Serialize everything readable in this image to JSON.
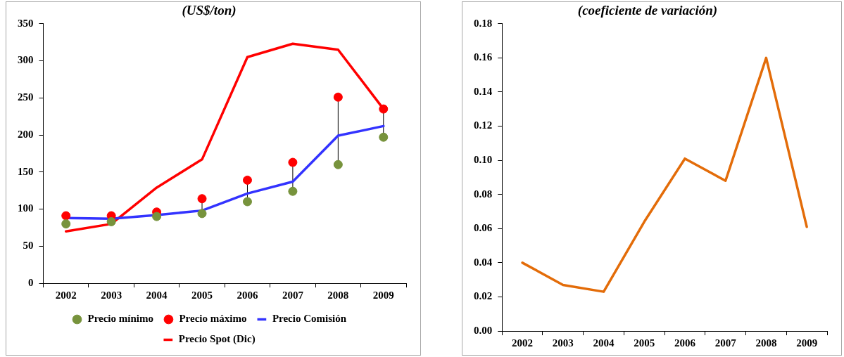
{
  "chart_data": [
    {
      "type": "line",
      "title": "(US$/ton)",
      "categories": [
        "2002",
        "2003",
        "2004",
        "2005",
        "2006",
        "2007",
        "2008",
        "2009"
      ],
      "series": [
        {
          "name": "Precio mínimo",
          "type": "scatter",
          "marker": "circle",
          "color": "#77933c",
          "values": [
            80,
            83,
            90,
            94,
            110,
            124,
            160,
            197
          ]
        },
        {
          "name": "Precio máximo",
          "type": "scatter",
          "marker": "circle",
          "color": "#ff0000",
          "values": [
            91,
            91,
            96,
            114,
            139,
            163,
            251,
            235
          ]
        },
        {
          "name": "Precio Comisión",
          "color": "#3333ff",
          "values": [
            88,
            87,
            92,
            98,
            121,
            137,
            199,
            212
          ]
        },
        {
          "name": "Precio Spot (Dic)",
          "color": "#ff0000",
          "values": [
            70,
            80,
            129,
            167,
            305,
            323,
            315,
            235
          ]
        }
      ],
      "ylim": [
        0,
        350
      ],
      "yticks": [
        0,
        50,
        100,
        150,
        200,
        250,
        300,
        350
      ],
      "legend": "bottom"
    },
    {
      "type": "line",
      "title": "(coeficiente de variación)",
      "categories": [
        "2002",
        "2003",
        "2004",
        "2005",
        "2006",
        "2007",
        "2008",
        "2009"
      ],
      "series": [
        {
          "color": "#e36c09",
          "values": [
            0.04,
            0.027,
            0.023,
            0.064,
            0.101,
            0.088,
            0.16,
            0.061
          ]
        }
      ],
      "ylim": [
        0,
        0.18
      ],
      "yticks": [
        {
          "value": 0,
          "label": "0.00"
        },
        {
          "value": 0.02,
          "label": "0.02"
        },
        {
          "value": 0.04,
          "label": "0.04"
        },
        {
          "value": 0.06,
          "label": "0.06"
        },
        {
          "value": 0.08,
          "label": "0.08"
        },
        {
          "value": 0.1,
          "label": "0.10"
        },
        {
          "value": 0.12,
          "label": "0.12"
        },
        {
          "value": 0.14,
          "label": "0.14"
        },
        {
          "value": 0.16,
          "label": "0.16"
        },
        {
          "value": 0.18,
          "label": "0.18"
        }
      ]
    }
  ]
}
